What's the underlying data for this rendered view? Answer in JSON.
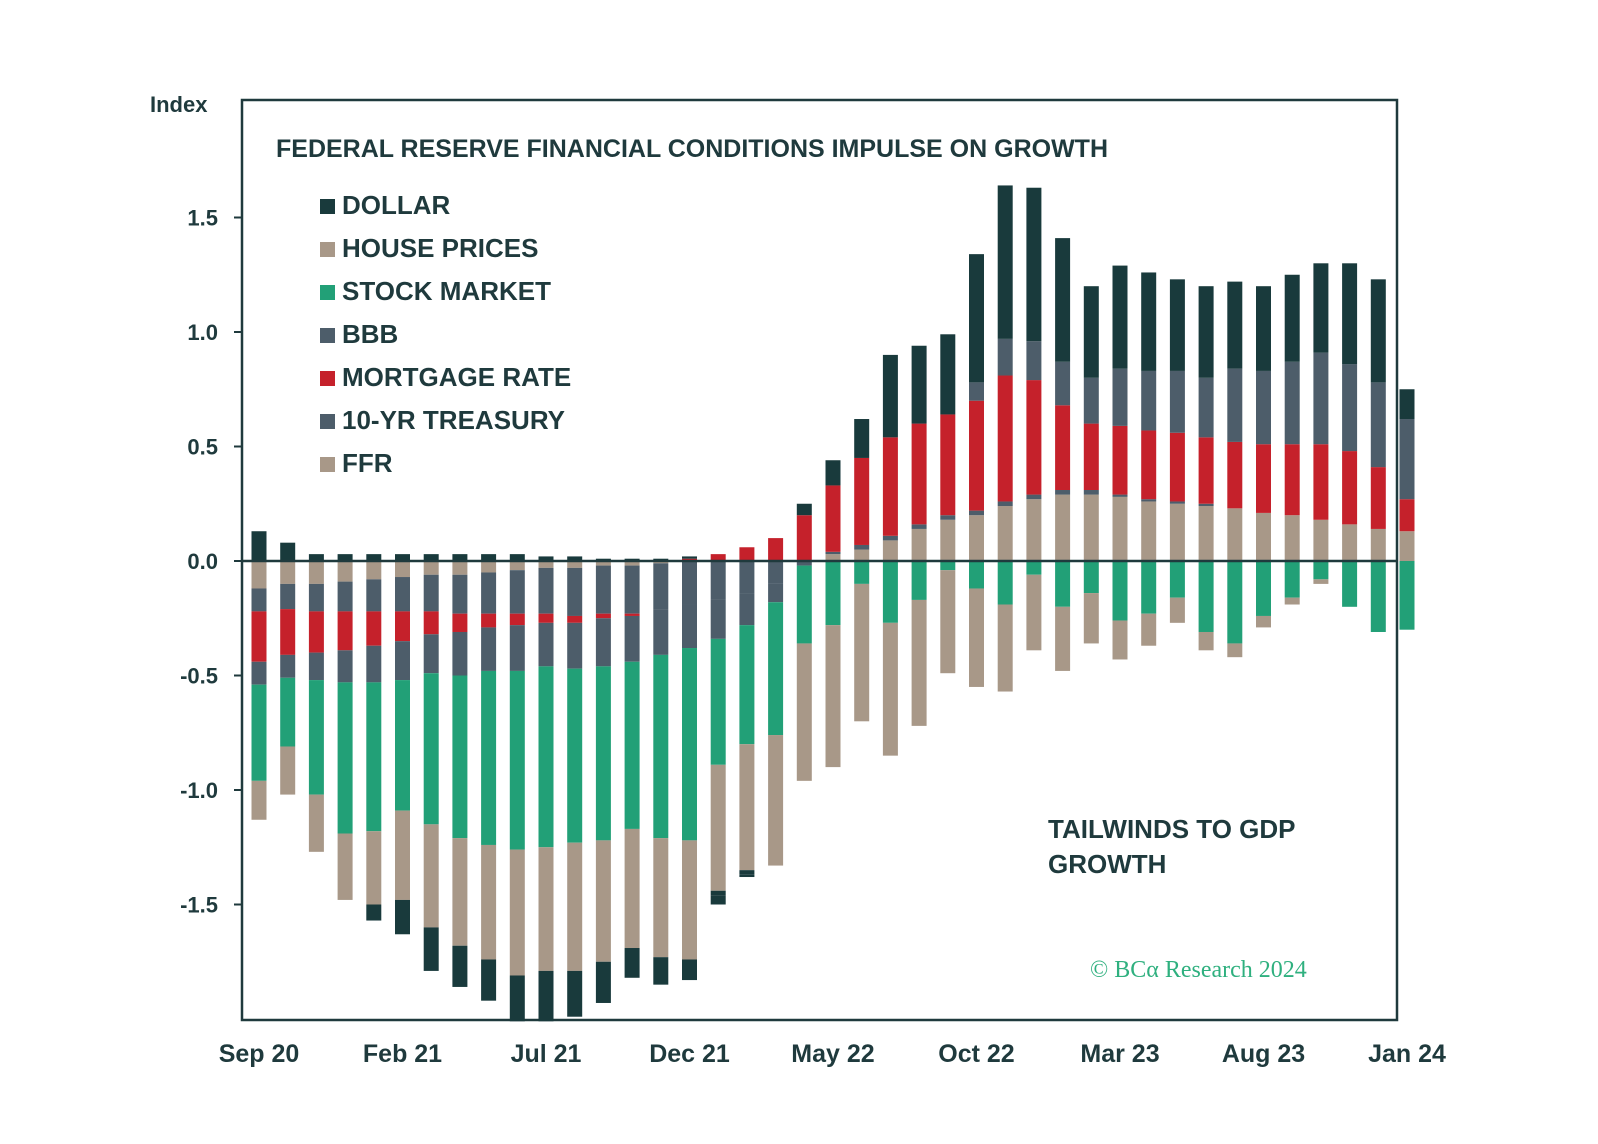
{
  "chart_data": {
    "type": "bar",
    "stacked": true,
    "title": "FEDERAL RESERVE FINANCIAL CONDITIONS IMPULSE ON GROWTH",
    "ylabel": "Index",
    "ylim": [
      -2.0,
      2.0
    ],
    "yticks": [
      "1.5",
      "1.0",
      "0.5",
      "0.0",
      "-0.5",
      "-1.0",
      "-1.5"
    ],
    "ytick_values": [
      1.5,
      1.0,
      0.5,
      0.0,
      -0.5,
      -1.0,
      -1.5
    ],
    "xtick_labels": [
      {
        "index": 0,
        "label": "Sep 20"
      },
      {
        "index": 5,
        "label": "Feb 21"
      },
      {
        "index": 10,
        "label": "Jul 21"
      },
      {
        "index": 15,
        "label": "Dec 21"
      },
      {
        "index": 20,
        "label": "May 22"
      },
      {
        "index": 25,
        "label": "Oct 22"
      },
      {
        "index": 30,
        "label": "Mar 23"
      },
      {
        "index": 35,
        "label": "Aug 23"
      },
      {
        "index": 40,
        "label": "Jan 24"
      }
    ],
    "categories": [
      "Sep 20",
      "Oct 20",
      "Nov 20",
      "Dec 20",
      "Jan 21",
      "Feb 21",
      "Mar 21",
      "Apr 21",
      "May 21",
      "Jun 21",
      "Jul 21",
      "Aug 21",
      "Sep 21",
      "Oct 21",
      "Nov 21",
      "Dec 21",
      "Jan 22",
      "Feb 22",
      "Mar 22",
      "Apr 22",
      "May 22",
      "Jun 22",
      "Jul 22",
      "Aug 22",
      "Sep 22",
      "Oct 22",
      "Nov 22",
      "Dec 22",
      "Jan 23",
      "Feb 23",
      "Mar 23",
      "Apr 23",
      "May 23",
      "Jun 23",
      "Jul 23",
      "Aug 23",
      "Sep 23",
      "Oct 23",
      "Nov 23",
      "Dec 23",
      "Jan 24"
    ],
    "series": [
      {
        "name": "FFR",
        "color": "#a89888",
        "values": [
          -0.12,
          -0.1,
          -0.1,
          -0.09,
          -0.08,
          -0.07,
          -0.06,
          -0.06,
          -0.05,
          -0.04,
          -0.03,
          -0.03,
          -0.02,
          -0.02,
          -0.01,
          0.0,
          0.0,
          0.0,
          0.0,
          0.0,
          0.03,
          0.05,
          0.09,
          0.14,
          0.18,
          0.2,
          0.24,
          0.27,
          0.29,
          0.29,
          0.28,
          0.26,
          0.25,
          0.24,
          0.23,
          0.21,
          0.2,
          0.18,
          0.16,
          0.14,
          0.13
        ]
      },
      {
        "name": "10-YR TREASURY",
        "color": "#4d5d6a",
        "values": [
          -0.1,
          -0.11,
          -0.12,
          -0.13,
          -0.14,
          -0.15,
          -0.16,
          -0.17,
          -0.18,
          -0.19,
          -0.2,
          -0.21,
          -0.21,
          -0.21,
          -0.2,
          -0.19,
          -0.17,
          -0.14,
          -0.1,
          -0.02,
          0.01,
          0.02,
          0.02,
          0.02,
          0.02,
          0.02,
          0.02,
          0.02,
          0.02,
          0.02,
          0.01,
          0.01,
          0.01,
          0.01,
          0.0,
          0.0,
          0.0,
          0.0,
          0.0,
          0.0,
          0.0
        ]
      },
      {
        "name": "MORTGAGE RATE",
        "color": "#c5212b",
        "values": [
          -0.22,
          -0.2,
          -0.18,
          -0.17,
          -0.15,
          -0.13,
          -0.1,
          -0.08,
          -0.06,
          -0.05,
          -0.04,
          -0.03,
          -0.02,
          -0.01,
          0.0,
          0.01,
          0.03,
          0.06,
          0.1,
          0.2,
          0.29,
          0.38,
          0.43,
          0.44,
          0.44,
          0.48,
          0.55,
          0.5,
          0.37,
          0.29,
          0.3,
          0.3,
          0.3,
          0.29,
          0.29,
          0.3,
          0.31,
          0.33,
          0.32,
          0.27,
          0.14
        ]
      },
      {
        "name": "BBB",
        "color": "#4d5d6a",
        "values": [
          -0.1,
          -0.1,
          -0.12,
          -0.14,
          -0.16,
          -0.17,
          -0.17,
          -0.19,
          -0.19,
          -0.2,
          -0.19,
          -0.2,
          -0.21,
          -0.2,
          -0.2,
          -0.19,
          -0.17,
          -0.14,
          -0.08,
          0.0,
          0.0,
          0.0,
          0.0,
          0.0,
          0.0,
          0.08,
          0.16,
          0.17,
          0.19,
          0.2,
          0.25,
          0.26,
          0.27,
          0.26,
          0.32,
          0.32,
          0.36,
          0.4,
          0.38,
          0.37,
          0.35
        ]
      },
      {
        "name": "STOCK MARKET",
        "color": "#22a077",
        "values": [
          -0.42,
          -0.3,
          -0.5,
          -0.66,
          -0.65,
          -0.57,
          -0.66,
          -0.71,
          -0.76,
          -0.78,
          -0.79,
          -0.76,
          -0.76,
          -0.73,
          -0.8,
          -0.84,
          -0.55,
          -0.52,
          -0.58,
          -0.34,
          -0.28,
          -0.1,
          -0.27,
          -0.17,
          -0.04,
          -0.12,
          -0.19,
          -0.06,
          -0.2,
          -0.14,
          -0.26,
          -0.23,
          -0.16,
          -0.31,
          -0.36,
          -0.24,
          -0.16,
          -0.08,
          -0.2,
          -0.31,
          -0.3
        ]
      },
      {
        "name": "HOUSE PRICES",
        "color": "#a89888",
        "values": [
          -0.17,
          -0.21,
          -0.25,
          -0.29,
          -0.32,
          -0.39,
          -0.45,
          -0.47,
          -0.5,
          -0.55,
          -0.54,
          -0.56,
          -0.53,
          -0.52,
          -0.52,
          -0.52,
          -0.55,
          -0.55,
          -0.57,
          -0.6,
          -0.62,
          -0.6,
          -0.58,
          -0.55,
          -0.45,
          -0.43,
          -0.38,
          -0.33,
          -0.28,
          -0.22,
          -0.17,
          -0.14,
          -0.11,
          -0.08,
          -0.06,
          -0.05,
          -0.03,
          -0.02,
          0.0,
          0.0,
          0.0
        ]
      },
      {
        "name": "DOLLAR",
        "color": "#193a3c",
        "values": [
          0.13,
          0.08,
          0.03,
          0.03,
          0.03,
          0.03,
          0.03,
          0.03,
          0.03,
          0.03,
          0.02,
          0.02,
          0.01,
          0.01,
          0.01,
          0.01,
          -0.02,
          -0.02,
          0.0,
          0.05,
          0.11,
          0.17,
          0.36,
          0.34,
          0.35,
          0.56,
          0.67,
          0.67,
          0.54,
          0.4,
          0.45,
          0.43,
          0.4,
          0.4,
          0.38,
          0.37,
          0.38,
          0.39,
          0.44,
          0.45,
          0.13
        ]
      }
    ],
    "extra_negative_dollar": [
      0,
      0,
      0,
      0,
      -0.07,
      -0.15,
      -0.19,
      -0.18,
      -0.18,
      -0.2,
      -0.22,
      -0.2,
      -0.18,
      -0.13,
      -0.12,
      -0.09,
      -0.04,
      -0.01,
      0,
      0,
      0,
      0,
      0,
      0,
      0,
      0,
      0,
      0,
      0,
      0,
      0,
      0,
      0,
      0,
      0,
      0,
      0,
      0,
      0,
      0,
      0
    ],
    "legend": {
      "placement": "top-left",
      "entries": [
        {
          "label": "DOLLAR",
          "color": "#193a3c"
        },
        {
          "label": "HOUSE PRICES",
          "color": "#a89888"
        },
        {
          "label": "STOCK MARKET",
          "color": "#22a077"
        },
        {
          "label": "BBB",
          "color": "#4d5d6a"
        },
        {
          "label": "MORTGAGE RATE",
          "color": "#c5212b"
        },
        {
          "label": "10-YR TREASURY",
          "color": "#4d5d6a"
        },
        {
          "label": "FFR",
          "color": "#a89888"
        }
      ]
    },
    "annotations": {
      "tailwinds_line1": "TAILWINDS TO GDP",
      "tailwinds_line2": "GROWTH",
      "copyright": "© BCα Research 2024"
    }
  }
}
